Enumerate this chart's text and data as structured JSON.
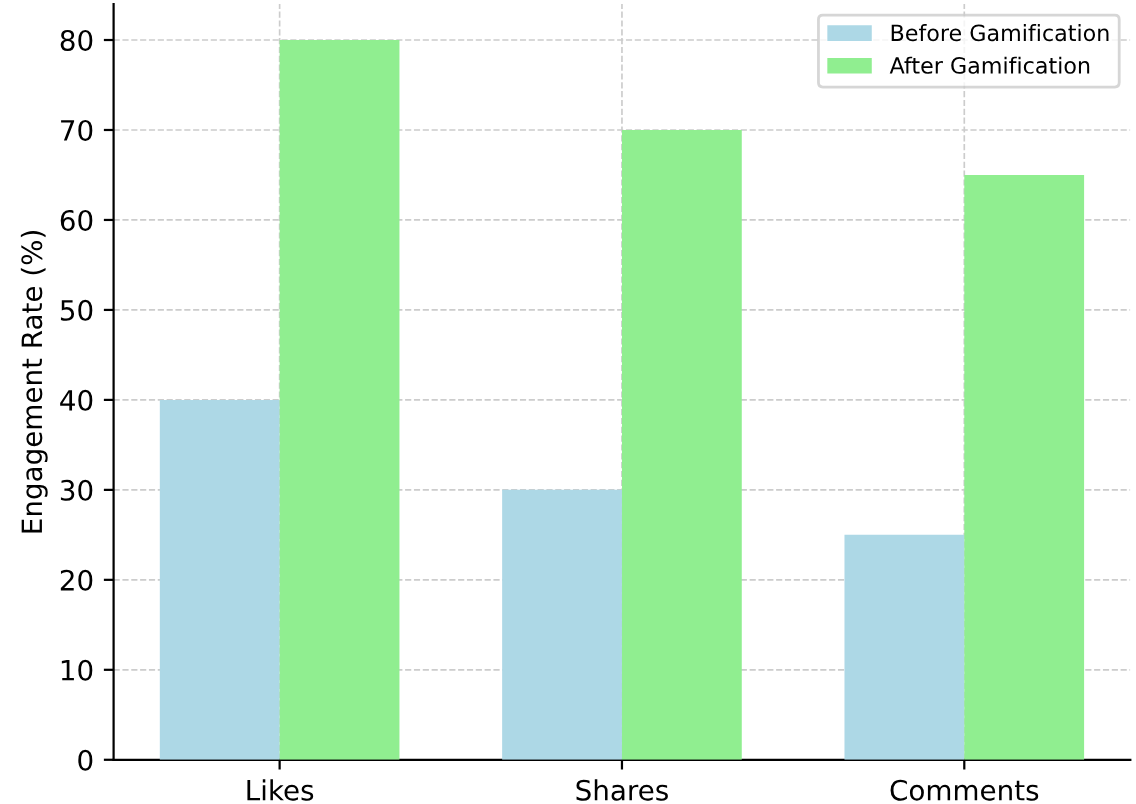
{
  "chart_data": {
    "type": "bar",
    "ylabel": "Engagement Rate (%)",
    "categories": [
      "Likes",
      "Shares",
      "Comments"
    ],
    "series": [
      {
        "name": "Before Gamification",
        "color": "#add8e6",
        "values": [
          40,
          30,
          25
        ]
      },
      {
        "name": "After Gamification",
        "color": "#90ee90",
        "values": [
          80,
          70,
          65
        ]
      }
    ],
    "ylim": [
      0,
      84
    ],
    "yticks": [
      0,
      10,
      20,
      30,
      40,
      50,
      60,
      70,
      80
    ],
    "grid": true,
    "legend": "top right"
  }
}
